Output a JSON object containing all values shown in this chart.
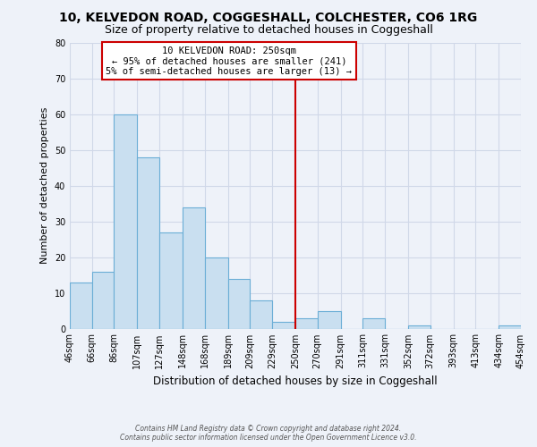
{
  "title": "10, KELVEDON ROAD, COGGESHALL, COLCHESTER, CO6 1RG",
  "subtitle": "Size of property relative to detached houses in Coggeshall",
  "xlabel": "Distribution of detached houses by size in Coggeshall",
  "ylabel": "Number of detached properties",
  "bar_edges": [
    46,
    66,
    86,
    107,
    127,
    148,
    168,
    189,
    209,
    229,
    250,
    270,
    291,
    311,
    331,
    352,
    372,
    393,
    413,
    434,
    454
  ],
  "bar_heights": [
    13,
    16,
    60,
    48,
    27,
    34,
    20,
    14,
    8,
    2,
    3,
    5,
    0,
    3,
    0,
    1,
    0,
    0,
    0,
    1
  ],
  "bar_color": "#c9dff0",
  "bar_edge_color": "#6baed6",
  "vline_x": 250,
  "vline_color": "#cc0000",
  "ylim": [
    0,
    80
  ],
  "yticks": [
    0,
    10,
    20,
    30,
    40,
    50,
    60,
    70,
    80
  ],
  "annotation_text": "10 KELVEDON ROAD: 250sqm\n← 95% of detached houses are smaller (241)\n5% of semi-detached houses are larger (13) →",
  "annotation_box_facecolor": "#ffffff",
  "annotation_box_edgecolor": "#cc0000",
  "footer_line1": "Contains HM Land Registry data © Crown copyright and database right 2024.",
  "footer_line2": "Contains public sector information licensed under the Open Government Licence v3.0.",
  "bg_color": "#eef2f9",
  "grid_color": "#d0d8e8",
  "tick_label_fontsize": 7,
  "ylabel_fontsize": 8,
  "xlabel_fontsize": 8.5,
  "title_fontsize": 10,
  "subtitle_fontsize": 9,
  "annotation_fontsize": 7.5,
  "footer_fontsize": 5.5
}
